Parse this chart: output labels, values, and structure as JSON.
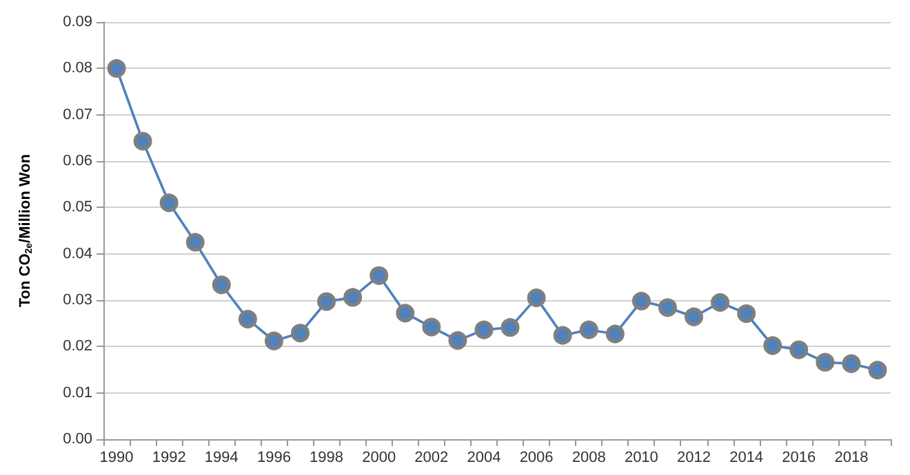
{
  "chart_data": {
    "type": "line",
    "ylabel": "Ton CO$_{2e}$/Million Won",
    "categories": [
      "1990",
      null,
      "1992",
      null,
      "1994",
      null,
      "1996",
      null,
      "1998",
      null,
      "2000",
      null,
      "2002",
      null,
      "2004",
      null,
      "2006",
      null,
      "2008",
      null,
      "2010",
      null,
      "2012",
      null,
      "2014",
      null,
      "2016",
      null,
      "2018",
      null
    ],
    "series": [
      {
        "color": "#4f81bd",
        "values": [
          0.08,
          0.0643,
          0.051,
          0.0425,
          0.0333,
          0.0259,
          0.0212,
          0.0229,
          0.0297,
          0.0306,
          0.0353,
          0.0272,
          0.0242,
          0.0213,
          0.0236,
          0.0241,
          0.0305,
          0.0224,
          0.0236,
          0.0227,
          0.0298,
          0.0284,
          0.0264,
          0.0295,
          0.0271,
          0.0202,
          0.0193,
          0.0166,
          0.0163,
          0.0149
        ]
      }
    ],
    "ylim": [
      0,
      0.09
    ],
    "yticks": [
      {
        "value": 0,
        "label": "0.00"
      },
      {
        "value": 0.01,
        "label": "0.01"
      },
      {
        "value": 0.02,
        "label": "0.02"
      },
      {
        "value": 0.03,
        "label": "0.03"
      },
      {
        "value": 0.04,
        "label": "0.04"
      },
      {
        "value": 0.05,
        "label": "0.05"
      },
      {
        "value": 0.06,
        "label": "0.06"
      },
      {
        "value": 0.07,
        "label": "0.07"
      },
      {
        "value": 0.08,
        "label": "0.08"
      },
      {
        "value": 0.09,
        "label": "0.09"
      }
    ],
    "grid": "y",
    "marker": "circle",
    "line_style": "solid"
  }
}
